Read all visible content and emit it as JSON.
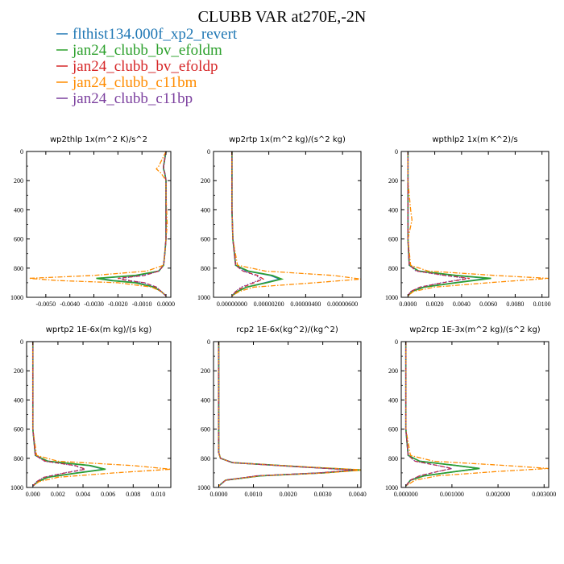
{
  "figure_title": "CLUBB VAR at270E,-2N",
  "legend": [
    {
      "label": "flthist134.000f_xp2_revert",
      "color": "#1f77b4"
    },
    {
      "label": "jan24_clubb_bv_efoldm",
      "color": "#2ca02c"
    },
    {
      "label": "jan24_clubb_bv_efoldp",
      "color": "#d62728"
    },
    {
      "label": "jan24_clubb_c11bm",
      "color": "#ff8c00"
    },
    {
      "label": "jan24_clubb_c11bp",
      "color": "#7b3f9e"
    }
  ],
  "chart_data": [
    {
      "type": "line",
      "title": "wp2thlp  1x(m^2 K)/s^2",
      "xlim": [
        -0.0058,
        0.0002
      ],
      "ylim": [
        1000,
        0
      ],
      "xticks": [
        -0.005,
        -0.004,
        -0.003,
        -0.002,
        -0.001,
        0.0
      ],
      "xtick_labels": [
        "-0.0050",
        "-0.0040",
        "-0.0030",
        "-0.0020",
        "-0.0010",
        "0.0000"
      ],
      "yticks": [
        0,
        200,
        400,
        600,
        800,
        1000
      ],
      "ytick_labels": [
        "0",
        "200",
        "400",
        "600",
        "800",
        "1000"
      ],
      "y": [
        0,
        100,
        120,
        150,
        200,
        300,
        500,
        600,
        700,
        780,
        820,
        850,
        870,
        885,
        900,
        930,
        960,
        990
      ],
      "series": [
        {
          "name": "flthist134.000f_xp2_revert",
          "color": "#1f77b4",
          "dash": "solid",
          "values": [
            0,
            -0.0001,
            -0.0001,
            -5e-05,
            0,
            0,
            0,
            0,
            -5e-05,
            -0.0001,
            -0.0003,
            -0.0012,
            -0.0028,
            -0.0022,
            -0.0012,
            -0.0005,
            -0.0002,
            0
          ]
        },
        {
          "name": "jan24_clubb_bv_efoldm",
          "color": "#2ca02c",
          "dash": "solid",
          "values": [
            0,
            -0.0001,
            -0.0001,
            -5e-05,
            0,
            0,
            0,
            0,
            -5e-05,
            -0.0001,
            -0.0003,
            -0.0013,
            -0.0029,
            -0.0023,
            -0.0013,
            -0.0005,
            -0.0002,
            0
          ]
        },
        {
          "name": "jan24_clubb_bv_efoldp",
          "color": "#d62728",
          "dash": "dash",
          "values": [
            0,
            -0.0001,
            -0.0001,
            -5e-05,
            0,
            0,
            0,
            0,
            -5e-05,
            -0.0001,
            -0.0003,
            -0.0009,
            -0.002,
            -0.0016,
            -0.0009,
            -0.0004,
            -0.0002,
            0
          ]
        },
        {
          "name": "jan24_clubb_c11bm",
          "color": "#ff8c00",
          "dash": "dashdot",
          "values": [
            0,
            -0.0003,
            -0.0004,
            -0.0002,
            0,
            0,
            5e-05,
            0,
            -5e-05,
            -0.0001,
            -0.0008,
            -0.003,
            -0.0057,
            -0.0045,
            -0.002,
            -0.0006,
            -0.0002,
            0
          ]
        },
        {
          "name": "jan24_clubb_c11bp",
          "color": "#7b3f9e",
          "dash": "dot",
          "values": [
            0,
            -0.0001,
            -0.0001,
            -5e-05,
            0,
            0,
            0,
            0,
            -5e-05,
            -0.0001,
            -0.0003,
            -0.0009,
            -0.0019,
            -0.0015,
            -0.0009,
            -0.0004,
            -0.0002,
            0
          ]
        }
      ]
    },
    {
      "type": "line",
      "title": "wp2rtp  1x(m^2 kg)/(s^2 kg)",
      "xlim": [
        -1e-07,
        7e-07
      ],
      "ylim": [
        1000,
        0
      ],
      "xticks": [
        0.0,
        2e-07,
        4e-07,
        6e-07
      ],
      "xtick_labels": [
        "0.00000000",
        "0.00000200",
        "0.00000400",
        "0.00000600"
      ],
      "yticks": [
        0,
        200,
        400,
        600,
        800,
        1000
      ],
      "ytick_labels": [
        "0",
        "200",
        "400",
        "600",
        "800",
        "1000"
      ],
      "y": [
        0,
        200,
        400,
        600,
        780,
        820,
        850,
        875,
        900,
        930,
        960,
        990
      ],
      "series": [
        {
          "name": "flthist134.000f_xp2_revert",
          "color": "#1f77b4",
          "dash": "solid",
          "values": [
            0,
            0,
            0,
            5e-09,
            2e-08,
            8e-08,
            2.1e-07,
            2.6e-07,
            1.8e-07,
            8e-08,
            3e-08,
            0
          ]
        },
        {
          "name": "jan24_clubb_bv_efoldm",
          "color": "#2ca02c",
          "dash": "solid",
          "values": [
            0,
            0,
            0,
            5e-09,
            2e-08,
            9e-08,
            2.2e-07,
            2.7e-07,
            1.9e-07,
            8e-08,
            3e-08,
            0
          ]
        },
        {
          "name": "jan24_clubb_bv_efoldp",
          "color": "#d62728",
          "dash": "dash",
          "values": [
            0,
            0,
            0,
            5e-09,
            2e-08,
            6e-08,
            1.4e-07,
            1.7e-07,
            1.2e-07,
            6e-08,
            2e-08,
            0
          ]
        },
        {
          "name": "jan24_clubb_c11bm",
          "color": "#ff8c00",
          "dash": "dashdot",
          "values": [
            0,
            0,
            0,
            5e-09,
            3e-08,
            1.8e-07,
            5.5e-07,
            7e-07,
            4.5e-07,
            1.2e-07,
            4e-08,
            0
          ]
        },
        {
          "name": "jan24_clubb_c11bp",
          "color": "#7b3f9e",
          "dash": "dot",
          "values": [
            0,
            0,
            0,
            5e-09,
            2e-08,
            6e-08,
            1.3e-07,
            1.6e-07,
            1.1e-07,
            5e-08,
            2e-08,
            0
          ]
        }
      ]
    },
    {
      "type": "line",
      "title": "wpthlp2  1x(m K^2)/s",
      "xlim": [
        -0.0005,
        0.0105
      ],
      "ylim": [
        1000,
        0
      ],
      "xticks": [
        0.0,
        0.002,
        0.004,
        0.006,
        0.008,
        0.01
      ],
      "xtick_labels": [
        "0.0000",
        "0.0020",
        "0.0040",
        "0.0060",
        "0.0080",
        "0.0100"
      ],
      "yticks": [
        0,
        200,
        400,
        600,
        800,
        1000
      ],
      "ytick_labels": [
        "0",
        "200",
        "400",
        "600",
        "800",
        "1000"
      ],
      "y": [
        0,
        200,
        400,
        470,
        600,
        780,
        820,
        850,
        870,
        900,
        930,
        960,
        990
      ],
      "series": [
        {
          "name": "flthist134.000f_xp2_revert",
          "color": "#1f77b4",
          "dash": "solid",
          "values": [
            0,
            0,
            0,
            0,
            0,
            0.0001,
            0.0008,
            0.0035,
            0.006,
            0.0035,
            0.0012,
            0.0003,
            0
          ]
        },
        {
          "name": "jan24_clubb_bv_efoldm",
          "color": "#2ca02c",
          "dash": "solid",
          "values": [
            0,
            0,
            0,
            0,
            0,
            0.0001,
            0.0008,
            0.0036,
            0.0062,
            0.0036,
            0.0012,
            0.0003,
            0
          ]
        },
        {
          "name": "jan24_clubb_bv_efoldp",
          "color": "#d62728",
          "dash": "dash",
          "values": [
            0,
            0,
            0,
            0,
            0,
            0.0001,
            0.0007,
            0.0028,
            0.0046,
            0.0026,
            0.0009,
            0.0002,
            0
          ]
        },
        {
          "name": "jan24_clubb_c11bm",
          "color": "#ff8c00",
          "dash": "dashdot",
          "values": [
            0,
            0,
            0.0002,
            0.0003,
            0,
            0.0002,
            0.0015,
            0.0065,
            0.0105,
            0.006,
            0.002,
            0.0004,
            0
          ]
        },
        {
          "name": "jan24_clubb_c11bp",
          "color": "#7b3f9e",
          "dash": "dot",
          "values": [
            0,
            0,
            0,
            0,
            0,
            0.0001,
            0.0006,
            0.0027,
            0.0044,
            0.0025,
            0.0009,
            0.0002,
            0
          ]
        }
      ]
    },
    {
      "type": "line",
      "title": "wprtp2  1E-6x(m kg)/(s kg)",
      "xlim": [
        -0.0005,
        0.011
      ],
      "ylim": [
        1000,
        0
      ],
      "xticks": [
        0.0,
        0.002,
        0.004,
        0.006,
        0.008,
        0.01
      ],
      "xtick_labels": [
        "0.000",
        "0.002",
        "0.004",
        "0.006",
        "0.008",
        "0.010"
      ],
      "yticks": [
        0,
        200,
        400,
        600,
        800,
        1000
      ],
      "ytick_labels": [
        "0",
        "200",
        "400",
        "600",
        "800",
        "1000"
      ],
      "y": [
        0,
        200,
        400,
        600,
        780,
        820,
        850,
        875,
        900,
        930,
        960,
        990
      ],
      "series": [
        {
          "name": "flthist134.000f_xp2_revert",
          "color": "#1f77b4",
          "dash": "solid",
          "values": [
            0,
            0,
            0,
            0,
            0.0002,
            0.0012,
            0.0045,
            0.0057,
            0.0035,
            0.0012,
            0.0004,
            0
          ]
        },
        {
          "name": "jan24_clubb_bv_efoldm",
          "color": "#2ca02c",
          "dash": "solid",
          "values": [
            0,
            0,
            0,
            0,
            0.0002,
            0.0012,
            0.0046,
            0.0058,
            0.0036,
            0.0012,
            0.0004,
            0
          ]
        },
        {
          "name": "jan24_clubb_bv_efoldp",
          "color": "#d62728",
          "dash": "dash",
          "values": [
            0,
            0,
            0,
            0,
            0.0002,
            0.001,
            0.0034,
            0.0042,
            0.0026,
            0.0009,
            0.0003,
            0
          ]
        },
        {
          "name": "jan24_clubb_c11bm",
          "color": "#ff8c00",
          "dash": "dashdot",
          "values": [
            0,
            0,
            0,
            0,
            0.0003,
            0.002,
            0.008,
            0.011,
            0.0065,
            0.002,
            0.0005,
            0
          ]
        },
        {
          "name": "jan24_clubb_c11bp",
          "color": "#7b3f9e",
          "dash": "dot",
          "values": [
            0,
            0,
            0,
            0,
            0.0002,
            0.0009,
            0.0033,
            0.0041,
            0.0025,
            0.0009,
            0.0003,
            0
          ]
        }
      ]
    },
    {
      "type": "line",
      "title": "rcp2  1E-6x(kg^2)/(kg^2)",
      "xlim": [
        -0.00015,
        0.0041
      ],
      "ylim": [
        1000,
        0
      ],
      "xticks": [
        0.0,
        0.001,
        0.002,
        0.003,
        0.004
      ],
      "xtick_labels": [
        "0.0000",
        "0.0010",
        "0.0020",
        "0.0030",
        "0.0040"
      ],
      "yticks": [
        0,
        200,
        400,
        600,
        800,
        1000
      ],
      "ytick_labels": [
        "0",
        "200",
        "400",
        "600",
        "800",
        "1000"
      ],
      "y": [
        0,
        200,
        400,
        600,
        760,
        800,
        830,
        860,
        880,
        900,
        920,
        950,
        990
      ],
      "series": [
        {
          "name": "flthist134.000f_xp2_revert",
          "color": "#1f77b4",
          "dash": "solid",
          "values": [
            0,
            0,
            0,
            0,
            0,
            5e-05,
            0.0004,
            0.0025,
            0.004,
            0.003,
            0.0012,
            0.0002,
            0
          ]
        },
        {
          "name": "jan24_clubb_bv_efoldm",
          "color": "#2ca02c",
          "dash": "solid",
          "values": [
            0,
            0,
            0,
            0,
            0,
            5e-05,
            0.0004,
            0.0025,
            0.0041,
            0.003,
            0.0012,
            0.0002,
            0
          ]
        },
        {
          "name": "jan24_clubb_bv_efoldp",
          "color": "#d62728",
          "dash": "dash",
          "values": [
            0,
            0,
            0,
            0,
            0,
            5e-05,
            0.0004,
            0.0024,
            0.0039,
            0.0029,
            0.0011,
            0.0002,
            0
          ]
        },
        {
          "name": "jan24_clubb_c11bm",
          "color": "#ff8c00",
          "dash": "dashdot",
          "values": [
            0,
            0,
            0,
            0,
            0,
            5e-05,
            0.0004,
            0.0026,
            0.0042,
            0.0031,
            0.0012,
            0.0002,
            0
          ]
        },
        {
          "name": "jan24_clubb_c11bp",
          "color": "#7b3f9e",
          "dash": "dot",
          "values": [
            0,
            0,
            0,
            0,
            0,
            5e-05,
            0.0004,
            0.0024,
            0.0039,
            0.0029,
            0.0011,
            0.0002,
            0
          ]
        }
      ]
    },
    {
      "type": "line",
      "title": "wp2rcp  1E-3x(m^2 kg)/(s^2 kg)",
      "xlim": [
        -0.0001,
        0.0031
      ],
      "ylim": [
        1000,
        0
      ],
      "xticks": [
        0.0,
        0.001,
        0.002,
        0.003
      ],
      "xtick_labels": [
        "0.000000",
        "0.001000",
        "0.002000",
        "0.003000"
      ],
      "yticks": [
        0,
        200,
        400,
        600,
        800,
        1000
      ],
      "ytick_labels": [
        "0",
        "200",
        "400",
        "600",
        "800",
        "1000"
      ],
      "y": [
        0,
        200,
        400,
        600,
        780,
        820,
        850,
        870,
        890,
        920,
        950,
        990
      ],
      "series": [
        {
          "name": "flthist134.000f_xp2_revert",
          "color": "#1f77b4",
          "dash": "solid",
          "values": [
            0,
            0,
            0,
            0,
            5e-05,
            0.0003,
            0.0011,
            0.0016,
            0.0011,
            0.0004,
            0.0001,
            0
          ]
        },
        {
          "name": "jan24_clubb_bv_efoldm",
          "color": "#2ca02c",
          "dash": "solid",
          "values": [
            0,
            0,
            0,
            0,
            5e-05,
            0.0003,
            0.0011,
            0.0016,
            0.0011,
            0.0004,
            0.0001,
            0
          ]
        },
        {
          "name": "jan24_clubb_bv_efoldp",
          "color": "#d62728",
          "dash": "dash",
          "values": [
            0,
            0,
            0,
            0,
            5e-05,
            0.0002,
            0.0007,
            0.001,
            0.0007,
            0.0003,
            0.0001,
            0
          ]
        },
        {
          "name": "jan24_clubb_c11bm",
          "color": "#ff8c00",
          "dash": "dashdot",
          "values": [
            0,
            0,
            0,
            0,
            0.0001,
            0.0006,
            0.0022,
            0.0031,
            0.002,
            0.0007,
            0.0002,
            0
          ]
        },
        {
          "name": "jan24_clubb_c11bp",
          "color": "#7b3f9e",
          "dash": "dot",
          "values": [
            0,
            0,
            0,
            0,
            5e-05,
            0.0002,
            0.0007,
            0.001,
            0.0007,
            0.0003,
            0.0001,
            0
          ]
        }
      ]
    }
  ]
}
